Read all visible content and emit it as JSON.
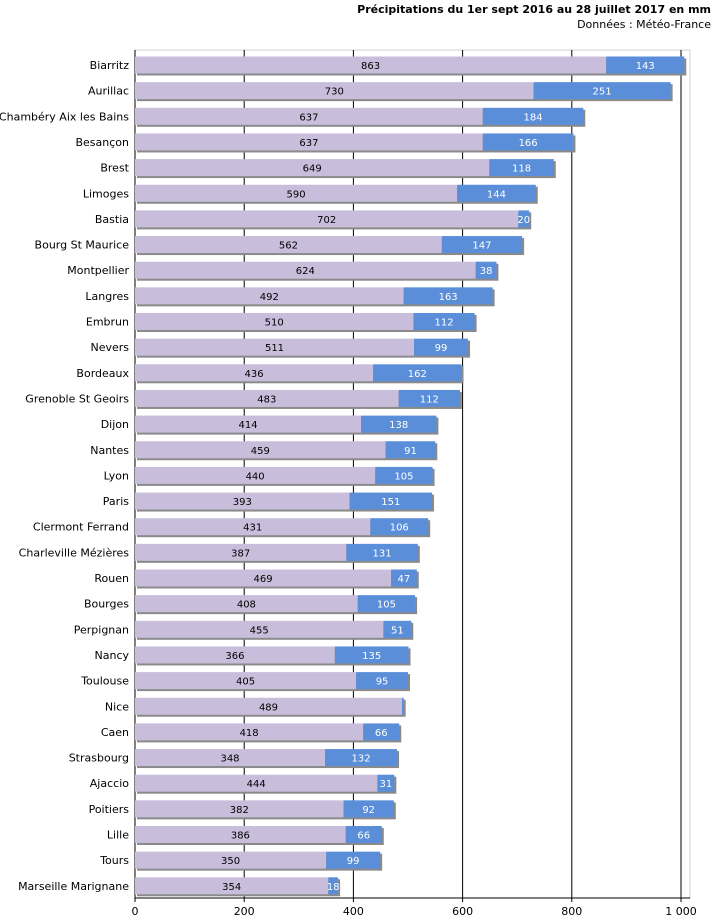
{
  "chart_data": {
    "type": "bar",
    "orientation": "horizontal",
    "stacked": true,
    "title": "Précipitations du 1er sept 2016 au 28 juillet 2017 en mm",
    "subtitle": "Données : Météo-France",
    "categories": [
      "Biarritz",
      "Aurillac",
      "Chambéry Aix les Bains",
      "Besançon",
      "Brest",
      "Limoges",
      "Bastia",
      "Bourg St Maurice",
      "Montpellier",
      "Langres",
      "Embrun",
      "Nevers",
      "Bordeaux",
      "Grenoble St Geoirs",
      "Dijon",
      "Nantes",
      "Lyon",
      "Paris",
      "Clermont Ferrand",
      "Charleville Mézières",
      "Rouen",
      "Bourges",
      "Perpignan",
      "Nancy",
      "Toulouse",
      "Nice",
      "Caen",
      "Strasbourg",
      "Ajaccio",
      "Poitiers",
      "Lille",
      "Tours",
      "Marseille Marignane"
    ],
    "series": [
      {
        "values": [
          863,
          730,
          637,
          637,
          649,
          590,
          702,
          562,
          624,
          492,
          510,
          511,
          436,
          483,
          414,
          459,
          440,
          393,
          431,
          387,
          469,
          408,
          455,
          366,
          405,
          489,
          418,
          348,
          444,
          382,
          386,
          350,
          354
        ],
        "color": "#c8bedc",
        "labels": [
          "863",
          "730",
          "637",
          "637",
          "649",
          "590",
          "702",
          "562",
          "624",
          "492",
          "510",
          "511",
          "436",
          "483",
          "414",
          "459",
          "440",
          "393",
          "431",
          "387",
          "469",
          "408",
          "455",
          "366",
          "405",
          "489",
          "418",
          "348",
          "444",
          "382",
          "386",
          "350",
          "354"
        ]
      },
      {
        "values": [
          143,
          251,
          184,
          166,
          118,
          144,
          20,
          147,
          38,
          163,
          112,
          99,
          162,
          112,
          138,
          91,
          105,
          151,
          106,
          131,
          47,
          105,
          51,
          135,
          95,
          3,
          66,
          132,
          31,
          92,
          66,
          99,
          18
        ],
        "color": "#5b8ed8",
        "labels": [
          "143",
          "251",
          "184",
          "166",
          "118",
          "144",
          "20",
          "147",
          "38",
          "163",
          "112",
          "99",
          "162",
          "112",
          "138",
          "91",
          "105",
          "151",
          "106",
          "131",
          "47",
          "105",
          "51",
          "135",
          "95",
          "",
          "66",
          "132",
          "31",
          "92",
          "66",
          "99",
          "18"
        ]
      }
    ],
    "xlim": [
      0,
      1000
    ],
    "xticks": [
      0,
      200,
      400,
      600,
      800,
      1000
    ],
    "xtick_labels": [
      "0",
      "200",
      "400",
      "600",
      "800",
      "1 000"
    ],
    "grid": true
  }
}
